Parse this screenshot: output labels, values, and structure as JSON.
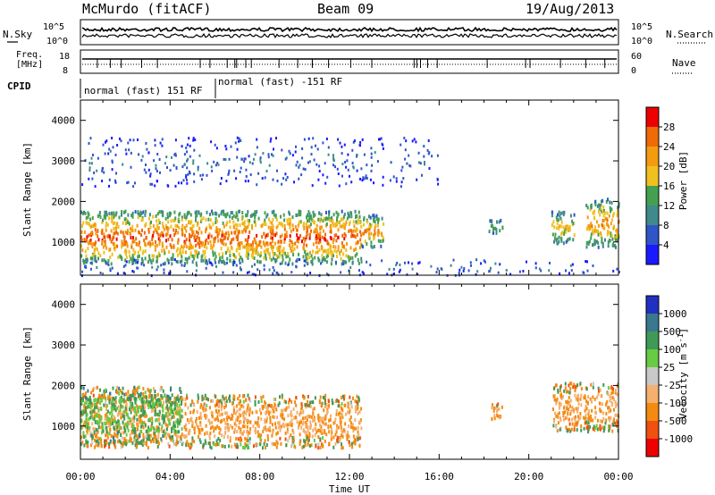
{
  "header": {
    "station": "McMurdo (fitACF)",
    "beam": "Beam 09",
    "date": "19/Aug/2013"
  },
  "status_panels": {
    "nsky_label": "N.Sky",
    "nsearch_label": "N.Search",
    "count_ticks": [
      "10^5",
      "10^0"
    ],
    "freq_label_line1": "Freq.",
    "freq_label_line2": "[MHz]",
    "freq_ticks": [
      "18",
      "8"
    ],
    "nave_label": "Nave",
    "nave_ticks": [
      "60",
      "0"
    ],
    "cpid_label": "CPID",
    "cpid_segments": [
      {
        "label": "normal (fast) 151 RF",
        "start_hour": 0,
        "end_hour": 6
      },
      {
        "label": "normal (fast) -151 RF",
        "start_hour": 6,
        "end_hour": 24
      }
    ]
  },
  "chart_data": [
    {
      "type": "heatmap",
      "name": "power",
      "ylabel": "Slant Range [km]",
      "xlabel": "",
      "x_range_hours": [
        0,
        24
      ],
      "ylim": [
        180,
        4500
      ],
      "y_ticks": [
        1000,
        2000,
        3000,
        4000
      ],
      "colorbar": {
        "label": "Power [dB]",
        "tick_labels": [
          "4",
          "8",
          "12",
          "16",
          "20",
          "24",
          "28"
        ],
        "colors": [
          "#1a1aff",
          "#2f55c8",
          "#3f8a8a",
          "#44a050",
          "#f0c020",
          "#f59b10",
          "#f06a08",
          "#ee0000"
        ]
      },
      "features": [
        {
          "desc": "main echo band",
          "start_hour": 0,
          "end_hour": 12.5,
          "range_km": [
            500,
            1800
          ],
          "peak_db": 28
        },
        {
          "desc": "echo patch",
          "start_hour": 12.5,
          "end_hour": 13.5,
          "range_km": [
            900,
            1700
          ],
          "peak_db": 24
        },
        {
          "desc": "echo patch",
          "start_hour": 18.2,
          "end_hour": 18.8,
          "range_km": [
            1200,
            1600
          ],
          "peak_db": 16
        },
        {
          "desc": "echo patch",
          "start_hour": 21.0,
          "end_hour": 22.0,
          "range_km": [
            1000,
            1800
          ],
          "peak_db": 20
        },
        {
          "desc": "echo patch",
          "start_hour": 22.5,
          "end_hour": 24.0,
          "range_km": [
            900,
            2100
          ],
          "peak_db": 24
        },
        {
          "desc": "near-range ground clutter",
          "start_hour": 0,
          "end_hour": 24,
          "range_km": [
            200,
            600
          ],
          "peak_db": 8
        },
        {
          "desc": "sparse far-range echoes",
          "start_hour": 0,
          "end_hour": 16,
          "range_km": [
            2400,
            3600
          ],
          "peak_db": 8
        }
      ]
    },
    {
      "type": "heatmap",
      "name": "velocity",
      "ylabel": "Slant Range [km]",
      "xlabel": "Time UT",
      "x_range_hours": [
        0,
        24
      ],
      "x_tick_labels": [
        "00:00",
        "04:00",
        "08:00",
        "12:00",
        "16:00",
        "20:00",
        "00:00"
      ],
      "ylim": [
        180,
        4500
      ],
      "y_ticks": [
        1000,
        2000,
        3000,
        4000
      ],
      "colorbar": {
        "label_main": "Velocity  [m s",
        "label_sup": "-1",
        "label_end": "]",
        "tick_labels": [
          "1000",
          "500",
          "100",
          "25",
          "-25",
          "-100",
          "-500",
          "-1000"
        ],
        "colors": [
          "#2030c0",
          "#3a7890",
          "#3f9a55",
          "#66cc44",
          "#c8c8c8",
          "#f5b070",
          "#f58a10",
          "#f05010",
          "#ee0000"
        ]
      },
      "features": [
        {
          "desc": "main echo band (towards/away mixed, mostly -100)",
          "start_hour": 0,
          "end_hour": 12.5,
          "range_km": [
            500,
            1800
          ],
          "typical_velocity": -100
        },
        {
          "desc": "green region early hours",
          "start_hour": 0,
          "end_hour": 4.5,
          "range_km": [
            600,
            2000
          ],
          "typical_velocity": 100
        },
        {
          "desc": "orange echo patch",
          "start_hour": 18.2,
          "end_hour": 18.8,
          "range_km": [
            1200,
            1600
          ],
          "typical_velocity": -100
        },
        {
          "desc": "mixed echo patch",
          "start_hour": 21.0,
          "end_hour": 24.0,
          "range_km": [
            900,
            2100
          ],
          "typical_velocity": -100
        }
      ]
    }
  ]
}
